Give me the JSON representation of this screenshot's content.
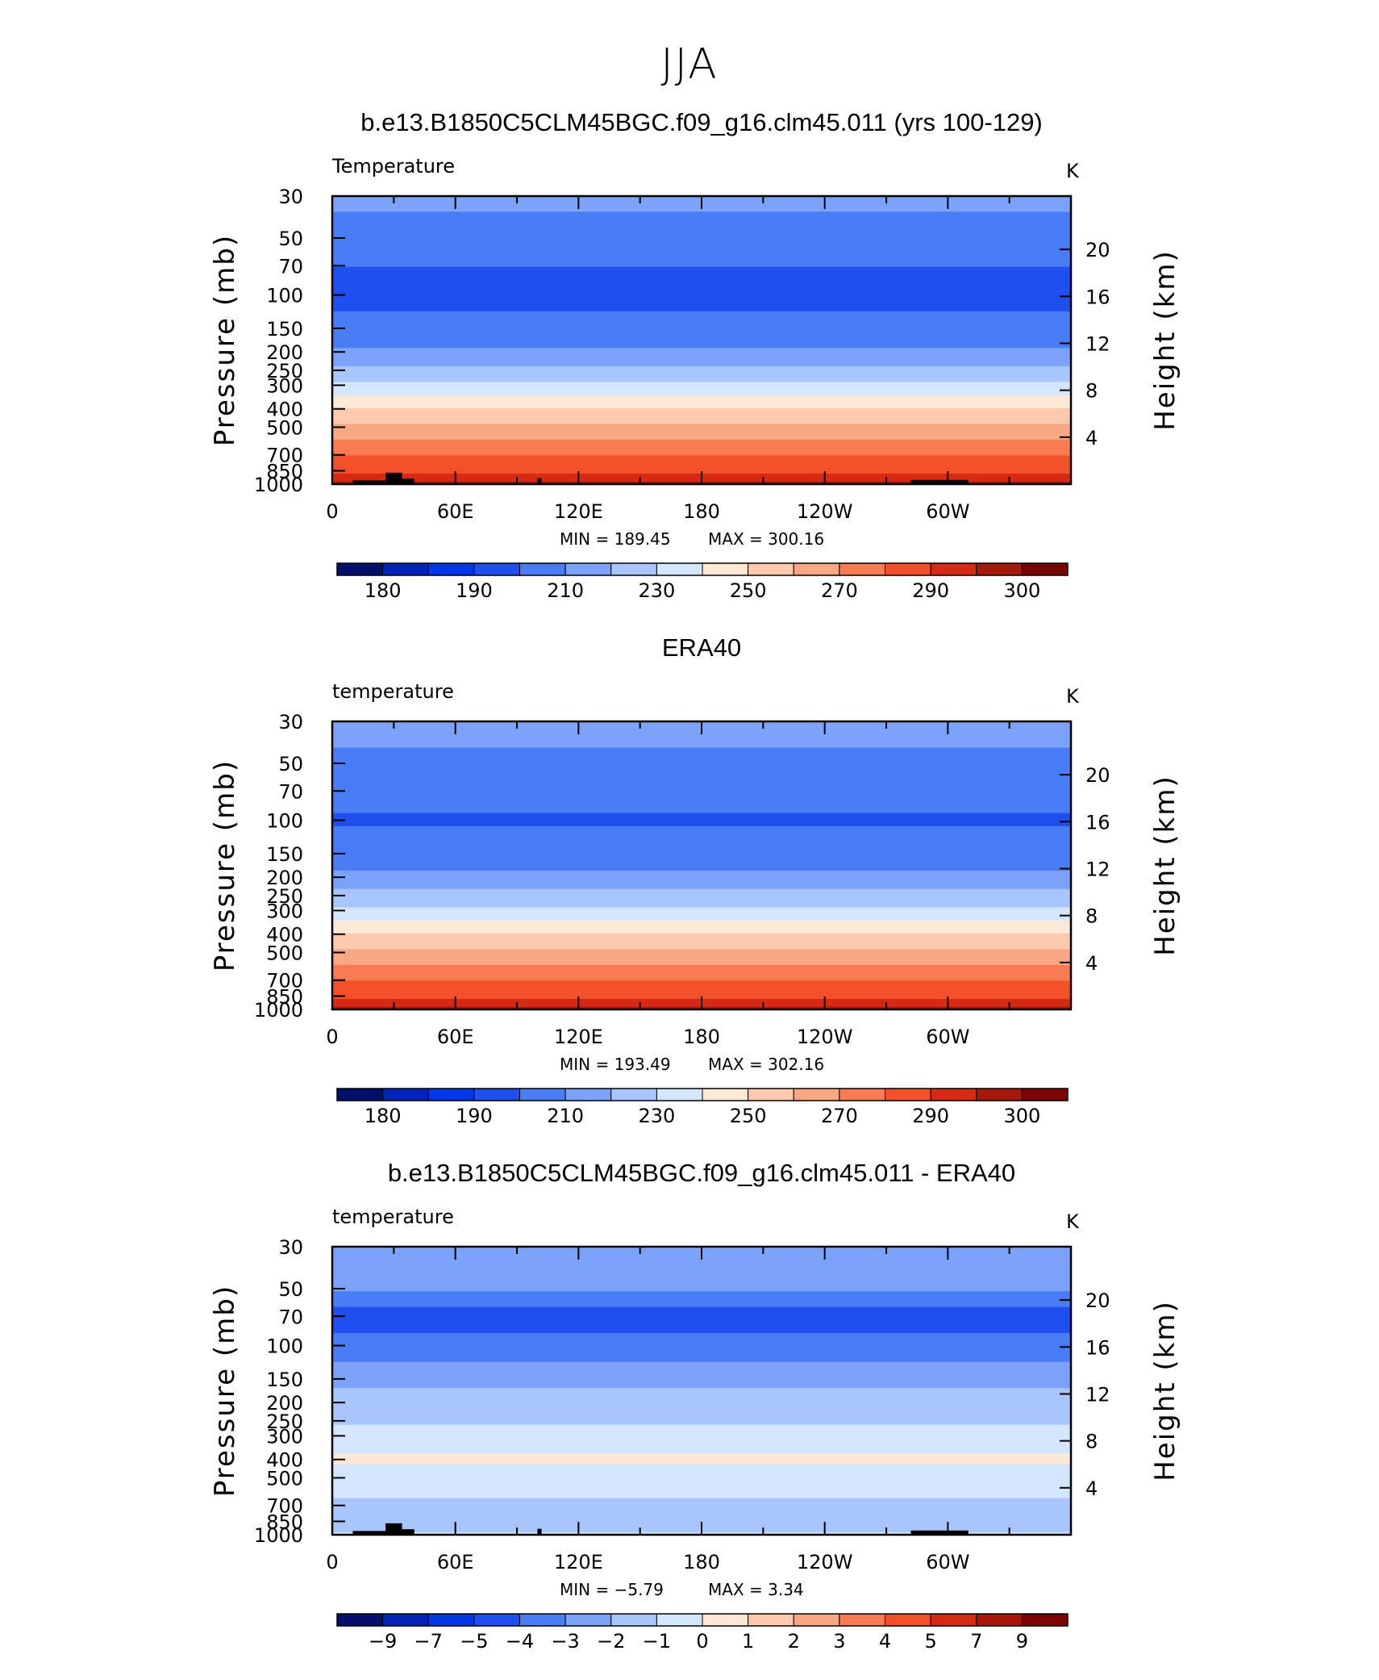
{
  "figure": {
    "title": "JJA"
  },
  "colors": {
    "temp_levels": [
      "#00106b",
      "#0024b8",
      "#0038e8",
      "#1f4ff0",
      "#4a7cf5",
      "#7aa3f9",
      "#a9c5fb",
      "#d4e6fd",
      "#fde8d6",
      "#fcc9ad",
      "#f9a683",
      "#f87b52",
      "#f2512a",
      "#d62a14",
      "#a6170c",
      "#7a0404"
    ],
    "diff_levels": [
      "#00106b",
      "#0024b8",
      "#0038e8",
      "#1f4ff0",
      "#4a7cf5",
      "#7aa3f9",
      "#a9c5fb",
      "#d4e6fd",
      "#fde8d6",
      "#fcc9ad",
      "#f9a683",
      "#f87b52",
      "#f2512a",
      "#d62a14",
      "#a6170c",
      "#7a0404"
    ],
    "land_mask": "#000000"
  },
  "chart_data": [
    {
      "type": "heatmap",
      "title": "b.e13.B1850C5CLM45BGC.f09_g16.clm45.011 (yrs 100-129)",
      "variable_label": "Temperature",
      "units": "K",
      "ylabel": "Pressure (mb)",
      "ylabel_right": "Height (km)",
      "x_ticks": [
        "0",
        "60E",
        "120E",
        "180",
        "120W",
        "60W"
      ],
      "y_ticks": [
        "30",
        "50",
        "70",
        "100",
        "150",
        "200",
        "250",
        "300",
        "400",
        "500",
        "700",
        "850",
        "1000"
      ],
      "y_ticks_right": [
        "20",
        "16",
        "12",
        "8",
        "4"
      ],
      "xlim": [
        0,
        360
      ],
      "ylim": [
        1000,
        30
      ],
      "log_pressure": true,
      "stats": {
        "min_label": "MIN  =  189.45",
        "max_label": "MAX  =  300.16",
        "min": 189.45,
        "max": 300.16
      },
      "colorbar_labels": [
        "180",
        "190",
        "210",
        "230",
        "250",
        "270",
        "290",
        "300"
      ],
      "profile": [
        [
          30,
          212
        ],
        [
          50,
          207
        ],
        [
          70,
          200
        ],
        [
          100,
          197
        ],
        [
          150,
          203
        ],
        [
          200,
          212
        ],
        [
          250,
          222
        ],
        [
          300,
          232
        ],
        [
          400,
          250
        ],
        [
          500,
          262
        ],
        [
          700,
          279
        ],
        [
          850,
          288
        ],
        [
          1000,
          296
        ]
      ]
    },
    {
      "type": "heatmap",
      "title": "ERA40",
      "variable_label": "temperature",
      "units": "K",
      "ylabel": "Pressure (mb)",
      "ylabel_right": "Height (km)",
      "x_ticks": [
        "0",
        "60E",
        "120E",
        "180",
        "120W",
        "60W"
      ],
      "y_ticks": [
        "30",
        "50",
        "70",
        "100",
        "150",
        "200",
        "250",
        "300",
        "400",
        "500",
        "700",
        "850",
        "1000"
      ],
      "y_ticks_right": [
        "20",
        "16",
        "12",
        "8",
        "4"
      ],
      "xlim": [
        0,
        360
      ],
      "ylim": [
        1000,
        30
      ],
      "log_pressure": true,
      "stats": {
        "min_label": "MIN  =  193.49",
        "max_label": "MAX  =  302.16",
        "min": 193.49,
        "max": 302.16
      },
      "colorbar_labels": [
        "180",
        "190",
        "210",
        "230",
        "250",
        "270",
        "290",
        "300"
      ],
      "profile": [
        [
          30,
          213
        ],
        [
          50,
          208
        ],
        [
          70,
          203
        ],
        [
          100,
          199
        ],
        [
          150,
          204
        ],
        [
          200,
          213
        ],
        [
          250,
          223
        ],
        [
          300,
          233
        ],
        [
          400,
          250
        ],
        [
          500,
          262
        ],
        [
          700,
          280
        ],
        [
          850,
          289
        ],
        [
          1000,
          297
        ]
      ]
    },
    {
      "type": "heatmap",
      "title": "b.e13.B1850C5CLM45BGC.f09_g16.clm45.011 - ERA40",
      "variable_label": "temperature",
      "units": "K",
      "ylabel": "Pressure (mb)",
      "ylabel_right": "Height (km)",
      "x_ticks": [
        "0",
        "60E",
        "120E",
        "180",
        "120W",
        "60W"
      ],
      "y_ticks": [
        "30",
        "50",
        "70",
        "100",
        "150",
        "200",
        "250",
        "300",
        "400",
        "500",
        "700",
        "850",
        "1000"
      ],
      "y_ticks_right": [
        "20",
        "16",
        "12",
        "8",
        "4"
      ],
      "xlim": [
        0,
        360
      ],
      "ylim": [
        1000,
        30
      ],
      "log_pressure": true,
      "stats": {
        "min_label": "MIN  =   −5.79",
        "max_label": "MAX  =      3.34",
        "min": -5.79,
        "max": 3.34
      },
      "colorbar_labels": [
        "−9",
        "−7",
        "−5",
        "−4",
        "−3",
        "−2",
        "−1",
        "0",
        "1",
        "2",
        "3",
        "4",
        "5",
        "7",
        "9"
      ],
      "profile": [
        [
          30,
          -2.5
        ],
        [
          50,
          -2.8
        ],
        [
          70,
          -4.5
        ],
        [
          100,
          -3.6
        ],
        [
          150,
          -2.4
        ],
        [
          200,
          -1.5
        ],
        [
          250,
          -1.2
        ],
        [
          300,
          -0.6
        ],
        [
          400,
          0.2
        ],
        [
          500,
          -0.5
        ],
        [
          700,
          -1.2
        ],
        [
          850,
          -1.5
        ],
        [
          1000,
          -0.8
        ]
      ]
    }
  ]
}
